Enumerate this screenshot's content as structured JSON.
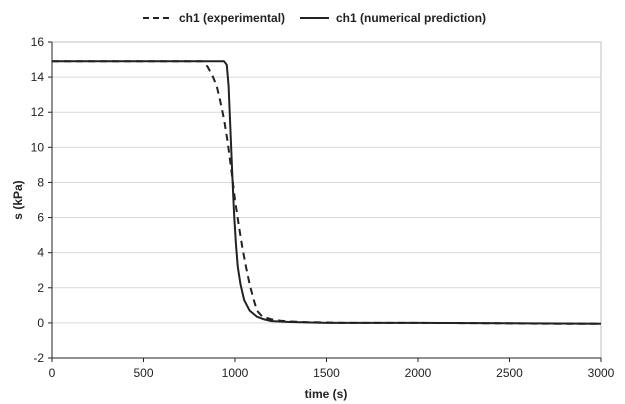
{
  "chart_data": {
    "type": "line",
    "xlabel": "time (s)",
    "ylabel": "s (kPa)",
    "xlim": [
      0,
      3000
    ],
    "ylim": [
      -2,
      16
    ],
    "x_ticks": [
      0,
      500,
      1000,
      1500,
      2000,
      2500,
      3000
    ],
    "y_ticks": [
      -2,
      0,
      2,
      4,
      6,
      8,
      10,
      12,
      14,
      16
    ],
    "grid": "horizontal",
    "legend_position": "top",
    "series": [
      {
        "name": "ch1 (experimental)",
        "style": "dashed",
        "color": "#222222",
        "x": [
          0,
          820,
          850,
          880,
          900,
          920,
          940,
          960,
          980,
          1000,
          1020,
          1040,
          1060,
          1080,
          1100,
          1120,
          1150,
          1200,
          1250,
          1300,
          1400,
          1600,
          2000,
          2400,
          2800,
          3000
        ],
        "y": [
          14.9,
          14.9,
          14.6,
          14.0,
          13.5,
          12.6,
          11.6,
          10.3,
          8.7,
          7.0,
          5.6,
          4.3,
          3.2,
          2.2,
          1.4,
          0.7,
          0.35,
          0.2,
          0.12,
          0.08,
          0.04,
          0.0,
          0.0,
          -0.02,
          -0.05,
          -0.05
        ]
      },
      {
        "name": "ch1 (numerical prediction)",
        "style": "solid",
        "color": "#222222",
        "x": [
          0,
          940,
          955,
          965,
          975,
          985,
          995,
          1005,
          1015,
          1030,
          1050,
          1080,
          1120,
          1160,
          1200,
          1300,
          1500,
          2000,
          2500,
          3000
        ],
        "y": [
          14.9,
          14.9,
          14.7,
          13.5,
          11.0,
          8.5,
          6.2,
          4.5,
          3.2,
          2.2,
          1.3,
          0.7,
          0.35,
          0.2,
          0.1,
          0.05,
          0.0,
          0.0,
          -0.02,
          -0.05
        ]
      }
    ]
  }
}
